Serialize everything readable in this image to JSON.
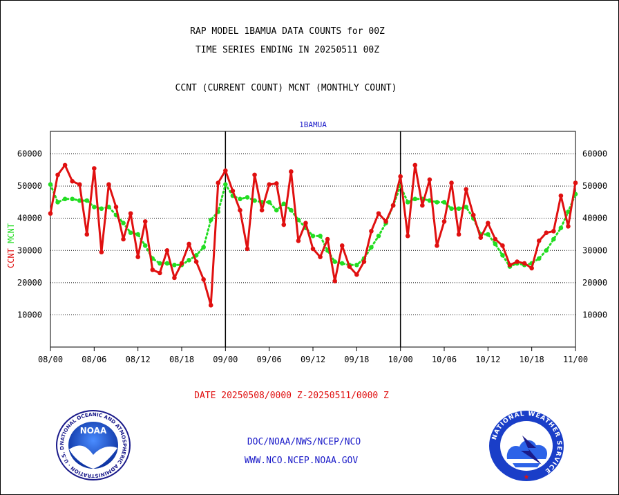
{
  "header": {
    "title_line1": "RAP MODEL 1BAMUA DATA COUNTS for 00Z",
    "title_line2": "TIME SERIES ENDING IN 20250511 00Z",
    "subtitle": "CCNT (CURRENT COUNT) MCNT (MONTHLY COUNT)",
    "panel_label": "1BAMUA"
  },
  "footer": {
    "date_range": "DATE 20250508/0000 Z-20250511/0000 Z",
    "org_line": "DOC/NOAA/NWS/NCEP/NCO",
    "url_line": "WWW.NCO.NCEP.NOAA.GOV",
    "noaa_logo_text": "NOAA",
    "noaa_ring_text": "NATIONAL OCEANIC AND ATMOSPHERIC ADMINISTRATION · U.S. DEPARTMENT OF COMMERCE",
    "nws_ring_text": "NATIONAL WEATHER SERVICE"
  },
  "colors": {
    "ccnt": "#e01010",
    "mcnt": "#22dd22",
    "grid": "#000000",
    "text_blue": "#1a1ac8"
  },
  "chart_data": {
    "type": "line",
    "xlabel": "",
    "ylabel_series": [
      "CCNT",
      "MCNT"
    ],
    "x_ticks": [
      "08/00",
      "08/06",
      "08/12",
      "08/18",
      "09/00",
      "09/06",
      "09/12",
      "09/18",
      "10/00",
      "10/06",
      "10/12",
      "10/18",
      "11/00"
    ],
    "x_period_breaks": [
      "09/00",
      "10/00"
    ],
    "y_ticks": [
      10000,
      20000,
      30000,
      40000,
      50000,
      60000
    ],
    "ylim": [
      0,
      67000
    ],
    "grid": true,
    "series": [
      {
        "name": "CCNT",
        "x": [
          0,
          1,
          2,
          3,
          4,
          5,
          6,
          7,
          8,
          9,
          10,
          11,
          12,
          13,
          14,
          15,
          16,
          17,
          18,
          19,
          20,
          21,
          22,
          23,
          24,
          25,
          26,
          27,
          28,
          29,
          30,
          31,
          32,
          33,
          34,
          35,
          36,
          37,
          38,
          39,
          40,
          41,
          42,
          43,
          44,
          45,
          46,
          47,
          48,
          49,
          50,
          51,
          52,
          53,
          54,
          55,
          56,
          57,
          58,
          59,
          60,
          61,
          62,
          63,
          64,
          65,
          66,
          67,
          68,
          69,
          70,
          71,
          72
        ],
        "values": [
          41500,
          53500,
          56500,
          51500,
          50500,
          35000,
          55500,
          29500,
          50500,
          43500,
          33500,
          41500,
          28000,
          39000,
          24000,
          23000,
          30000,
          21500,
          26000,
          32000,
          26500,
          21000,
          13000,
          51000,
          54800,
          48500,
          42500,
          30500,
          53500,
          42500,
          50500,
          50800,
          38000,
          54500,
          33000,
          38500,
          30500,
          28000,
          33500,
          20500,
          31500,
          25000,
          22500,
          26500,
          36000,
          41500,
          39000,
          44000,
          53000,
          34500,
          56500,
          44000,
          52000,
          31500,
          39000,
          51000,
          35000,
          49000,
          41000,
          34000,
          38500,
          33500,
          31500,
          25500,
          26500,
          26000,
          24500,
          33000,
          35500,
          36000,
          47000,
          37500,
          51000
        ]
      },
      {
        "name": "MCNT",
        "x": [
          0,
          1,
          2,
          3,
          4,
          5,
          6,
          7,
          8,
          9,
          10,
          11,
          12,
          13,
          14,
          15,
          16,
          17,
          18,
          19,
          20,
          21,
          22,
          23,
          24,
          25,
          26,
          27,
          28,
          29,
          30,
          31,
          32,
          33,
          34,
          35,
          36,
          37,
          38,
          39,
          40,
          41,
          42,
          43,
          44,
          45,
          46,
          47,
          48,
          49,
          50,
          51,
          52,
          53,
          54,
          55,
          56,
          57,
          58,
          59,
          60,
          61,
          62,
          63,
          64,
          65,
          66,
          67,
          68,
          69,
          70,
          71,
          72
        ],
        "values": [
          50500,
          45000,
          46000,
          46000,
          45500,
          45500,
          43500,
          43000,
          43500,
          41000,
          38500,
          35500,
          35000,
          31500,
          27500,
          26000,
          26000,
          25500,
          25500,
          27000,
          28500,
          31000,
          39500,
          42000,
          50500,
          47000,
          46000,
          46500,
          45500,
          45000,
          45000,
          42500,
          44500,
          42500,
          39500,
          37000,
          34500,
          34500,
          30000,
          26500,
          26000,
          25500,
          25500,
          27500,
          31000,
          34500,
          38500,
          44000,
          50000,
          45000,
          46000,
          46000,
          45500,
          45000,
          45000,
          43000,
          43000,
          43500,
          40000,
          35000,
          35000,
          32000,
          28500,
          25000,
          26000,
          25500,
          26000,
          27500,
          30000,
          33500,
          37000,
          42000,
          47500
        ]
      }
    ]
  }
}
